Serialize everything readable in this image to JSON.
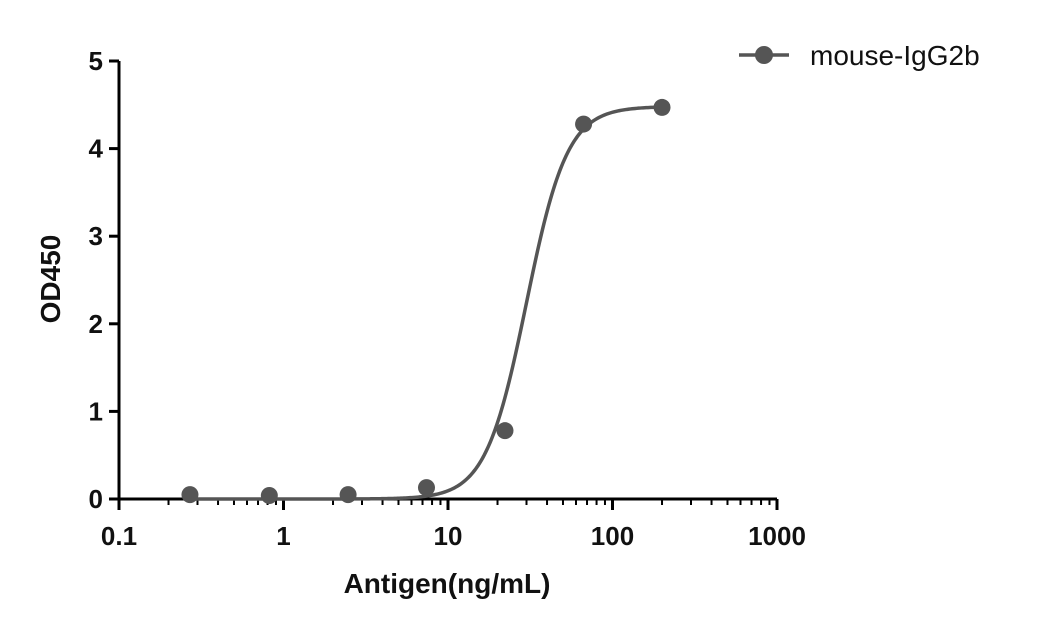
{
  "chart_data": {
    "type": "scatter",
    "title": "",
    "xlabel": "Antigen(ng/mL)",
    "ylabel": "OD450",
    "x_scale": "log",
    "xlim": [
      0.1,
      1000
    ],
    "ylim": [
      0,
      5
    ],
    "x_ticks": [
      0.1,
      1,
      10,
      100,
      1000
    ],
    "x_tick_labels": [
      "0.1",
      "1",
      "10",
      "100",
      "1000"
    ],
    "y_ticks": [
      0,
      1,
      2,
      3,
      4,
      5
    ],
    "y_tick_labels": [
      "0",
      "1",
      "2",
      "3",
      "4",
      "5"
    ],
    "grid": false,
    "legend": "top-right",
    "series": [
      {
        "name": "mouse-IgG2b",
        "color": "#555555",
        "x": [
          0.27,
          0.82,
          2.47,
          7.4,
          22.2,
          66.7,
          200
        ],
        "y": [
          0.05,
          0.04,
          0.05,
          0.13,
          0.78,
          4.28,
          4.47
        ],
        "fit": {
          "model": "4PL",
          "bottom": 0.0,
          "top": 4.48,
          "ec50": 30,
          "hill": 3.5
        }
      }
    ]
  }
}
